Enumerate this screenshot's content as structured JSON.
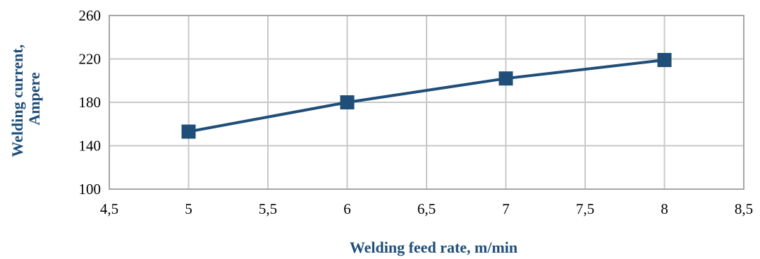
{
  "chart_data": {
    "type": "line",
    "title": "",
    "xlabel": "Welding  feed rate, m/min",
    "ylabel_lines": [
      "Welding  current,",
      "Ampere"
    ],
    "xlim": [
      4.5,
      8.5
    ],
    "ylim": [
      100,
      260
    ],
    "x_ticks": [
      4.5,
      5,
      5.5,
      6,
      6.5,
      7,
      7.5,
      8,
      8.5
    ],
    "x_tick_labels": [
      "4,5",
      "5",
      "5,5",
      "6",
      "6,5",
      "7",
      "7,5",
      "8",
      "8,5"
    ],
    "y_ticks": [
      100,
      140,
      180,
      220,
      260
    ],
    "y_tick_labels": [
      "100",
      "140",
      "180",
      "220",
      "260"
    ],
    "grid": true,
    "legend": "none",
    "series": [
      {
        "marker": "square",
        "color": "#1f4e79",
        "x": [
          5,
          6,
          7,
          8
        ],
        "y": [
          153,
          180,
          202,
          219
        ]
      }
    ],
    "colors": {
      "series": "#1f4e79",
      "axis_title": "#1f4e79",
      "grid": "#c8c8c8",
      "frame": "#a6a6a6"
    }
  }
}
